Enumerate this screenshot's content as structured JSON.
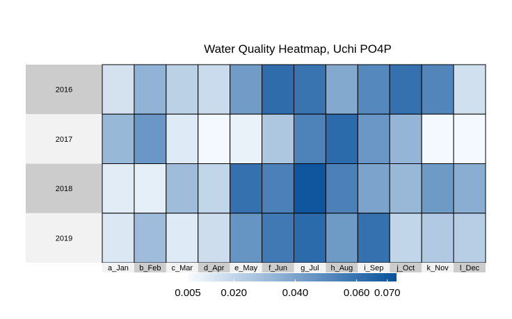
{
  "chart_data": {
    "type": "heatmap",
    "title": "Water Quality Heatmap, Uchi PO4P",
    "rows": [
      "2016",
      "2017",
      "2018",
      "2019"
    ],
    "columns": [
      "a_Jan",
      "b_Feb",
      "c_Mar",
      "d_Apr",
      "e_May",
      "f_Jun",
      "g_Jul",
      "h_Aug",
      "i_Sep",
      "j_Oct",
      "k_Nov",
      "l_Dec"
    ],
    "values": [
      [
        0.015,
        0.034,
        0.022,
        0.018,
        0.043,
        0.062,
        0.059,
        0.038,
        0.051,
        0.06,
        0.052,
        0.016
      ],
      [
        0.032,
        0.045,
        0.012,
        0.006,
        0.009,
        0.026,
        0.053,
        0.063,
        0.045,
        0.033,
        0.006,
        0.006
      ],
      [
        0.011,
        0.01,
        0.03,
        0.02,
        0.06,
        0.054,
        0.071,
        0.054,
        0.04,
        0.032,
        0.044,
        0.036
      ],
      [
        0.013,
        0.03,
        0.012,
        0.017,
        0.046,
        0.057,
        0.063,
        0.044,
        0.06,
        0.02,
        0.025,
        0.023
      ]
    ],
    "color_scale": {
      "min": 0.005,
      "max": 0.073,
      "low_color": "#f7fbff",
      "high_color": "#08519c",
      "ticks": [
        0.005,
        0.02,
        0.04,
        0.06,
        0.07
      ],
      "tick_labels": [
        "0.005",
        "0.020",
        "0.040",
        "0.060",
        "0.070"
      ]
    },
    "row_label_backgrounds": [
      "#cccccc",
      "#f2f2f2",
      "#cccccc",
      "#f2f2f2"
    ],
    "col_label_backgrounds": [
      "#f2f2f2",
      "#cccccc",
      "#f2f2f2",
      "#cccccc",
      "#f2f2f2",
      "#cccccc",
      "#f2f2f2",
      "#cccccc",
      "#f2f2f2",
      "#cccccc",
      "#f2f2f2",
      "#cccccc"
    ],
    "legend": "bottom"
  }
}
